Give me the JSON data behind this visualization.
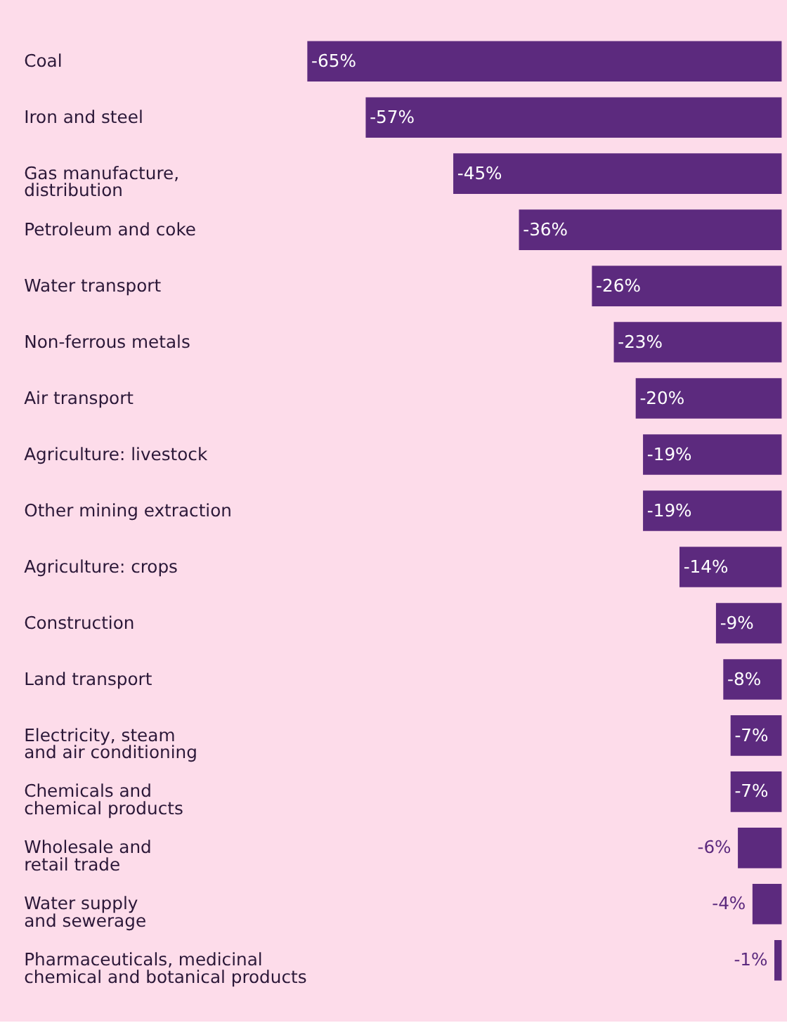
{
  "chart_data": {
    "type": "bar",
    "orientation": "horizontal",
    "categories": [
      "Coal",
      "Iron and steel",
      "Gas manufacture, distribution",
      "Petroleum and coke",
      "Water transport",
      "Non-ferrous metals",
      "Air transport",
      "Agriculture: livestock",
      "Other mining extraction",
      "Agriculture: crops",
      "Construction",
      "Land transport",
      "Electricity, steam and air conditioning",
      "Chemicals and chemical products",
      "Wholesale and retail trade",
      "Water supply and sewerage",
      "Pharmaceuticals, medicinal chemical and botanical products"
    ],
    "values": [
      -65,
      -57,
      -45,
      -36,
      -26,
      -23,
      -20,
      -19,
      -19,
      -14,
      -9,
      -8,
      -7,
      -7,
      -6,
      -4,
      -1
    ],
    "value_labels": [
      "-65%",
      "-57%",
      "-45%",
      "-36%",
      "-26%",
      "-23%",
      "-20%",
      "-19%",
      "-19%",
      "-14%",
      "-9%",
      "-8%",
      "-7%",
      "-7%",
      "-6%",
      "-4%",
      "-1%"
    ],
    "color": "#5c2a7e"
  }
}
